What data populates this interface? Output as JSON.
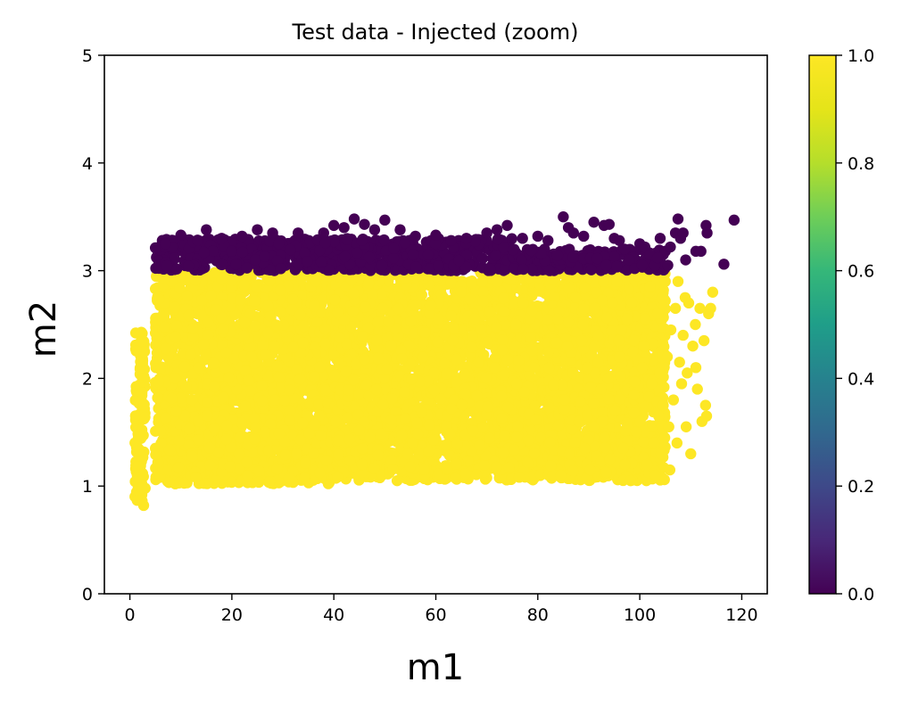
{
  "chart_data": {
    "type": "scatter",
    "title": "Test data - Injected (zoom)",
    "xlabel": "m1",
    "ylabel": "m2",
    "xlim": [
      -5,
      125
    ],
    "ylim": [
      0,
      5
    ],
    "xticks": [
      0,
      20,
      40,
      60,
      80,
      100,
      120
    ],
    "yticks": [
      0,
      1,
      2,
      3,
      4,
      5
    ],
    "grid": false,
    "legend": "none",
    "colormap": "viridis",
    "colorbar": {
      "range": [
        0.0,
        1.0
      ],
      "ticks": [
        "0.0",
        "0.2",
        "0.4",
        "0.6",
        "0.8",
        "1.0"
      ],
      "placement": "right"
    },
    "colors": {
      "label_1": "#fde725",
      "label_0": "#440154"
    },
    "series": [
      {
        "color_value": 1.0,
        "description_points": "dense filled region",
        "regions": [
          {
            "x_range": [
              1,
              3
            ],
            "y_range": [
              0.8,
              2.45
            ]
          },
          {
            "x_range": [
              5,
              40
            ],
            "y_range": [
              1.02,
              3.0
            ]
          },
          {
            "x_range": [
              40,
              82
            ],
            "y_range": [
              1.05,
              3.0
            ]
          },
          {
            "x_range": [
              82,
              105
            ],
            "y_range": [
              1.05,
              3.0
            ]
          }
        ],
        "points": [
          [
            84.5,
            1.1
          ],
          [
            86.2,
            1.3
          ],
          [
            88.1,
            1.6
          ],
          [
            89.7,
            2.1
          ],
          [
            90.3,
            1.15
          ],
          [
            91.8,
            2.4
          ],
          [
            92.4,
            1.9
          ],
          [
            93.1,
            1.45
          ],
          [
            94.6,
            2.7
          ],
          [
            95.2,
            1.7
          ],
          [
            96.0,
            2.2
          ],
          [
            96.8,
            1.35
          ],
          [
            97.5,
            2.55
          ],
          [
            98.2,
            1.05
          ],
          [
            98.9,
            1.85
          ],
          [
            99.6,
            2.95
          ],
          [
            100.1,
            1.6
          ],
          [
            100.8,
            2.3
          ],
          [
            101.4,
            1.2
          ],
          [
            101.9,
            2.8
          ],
          [
            102.3,
            1.95
          ],
          [
            102.8,
            1.4
          ],
          [
            103.1,
            1.1
          ],
          [
            103.5,
            2.6
          ],
          [
            103.9,
            2.05
          ],
          [
            104.2,
            1.3
          ],
          [
            104.6,
            1.75
          ],
          [
            105.0,
            2.9
          ],
          [
            105.4,
            2.2
          ],
          [
            105.7,
            1.55
          ],
          [
            106.1,
            2.45
          ],
          [
            106.6,
            1.8
          ],
          [
            107.0,
            2.65
          ],
          [
            107.3,
            1.4
          ],
          [
            107.8,
            2.15
          ],
          [
            108.2,
            1.95
          ],
          [
            108.5,
            2.4
          ],
          [
            109.1,
            1.55
          ],
          [
            109.6,
            2.7
          ],
          [
            110.0,
            1.3
          ],
          [
            110.4,
            2.3
          ],
          [
            110.9,
            2.5
          ],
          [
            111.3,
            1.9
          ],
          [
            111.8,
            2.65
          ],
          [
            112.2,
            1.6
          ],
          [
            112.6,
            2.35
          ],
          [
            113.1,
            1.65
          ],
          [
            113.5,
            2.6
          ],
          [
            113.9,
            2.65
          ],
          [
            114.3,
            2.8
          ],
          [
            95.5,
            2.9
          ],
          [
            97.1,
            1.2
          ],
          [
            99.3,
            1.5
          ],
          [
            100.5,
            2.1
          ],
          [
            102.0,
            2.85
          ],
          [
            103.7,
            1.65
          ],
          [
            105.9,
            1.15
          ],
          [
            108.9,
            2.75
          ],
          [
            111.0,
            2.1
          ],
          [
            112.9,
            1.75
          ],
          [
            86.9,
            2.05
          ],
          [
            88.6,
            2.35
          ],
          [
            90.9,
            1.55
          ],
          [
            92.9,
            2.9
          ],
          [
            94.1,
            1.25
          ],
          [
            84.0,
            2.55
          ],
          [
            85.3,
            1.8
          ],
          [
            87.4,
            2.75
          ],
          [
            89.2,
            1.35
          ],
          [
            91.2,
            2.65
          ],
          [
            93.8,
            2.0
          ],
          [
            96.4,
            2.45
          ],
          [
            98.6,
            2.25
          ],
          [
            101.1,
            2.55
          ],
          [
            104.9,
            1.45
          ],
          [
            107.5,
            2.9
          ],
          [
            109.3,
            2.05
          ]
        ]
      },
      {
        "color_value": 0.0,
        "description_points": "band above m2=3",
        "regions": [
          {
            "x_range": [
              5,
              75
            ],
            "y_range": [
              3.0,
              3.3
            ]
          },
          {
            "x_range": [
              75,
              105
            ],
            "y_range": [
              3.0,
              3.2
            ]
          }
        ],
        "points": [
          [
            7,
            3.25
          ],
          [
            10,
            3.33
          ],
          [
            15,
            3.38
          ],
          [
            18,
            3.3
          ],
          [
            22,
            3.32
          ],
          [
            25,
            3.38
          ],
          [
            28,
            3.35
          ],
          [
            33,
            3.35
          ],
          [
            38,
            3.35
          ],
          [
            40,
            3.42
          ],
          [
            42,
            3.4
          ],
          [
            44,
            3.48
          ],
          [
            46,
            3.43
          ],
          [
            48,
            3.38
          ],
          [
            50,
            3.47
          ],
          [
            53,
            3.38
          ],
          [
            56,
            3.32
          ],
          [
            60,
            3.33
          ],
          [
            63,
            3.28
          ],
          [
            66,
            3.3
          ],
          [
            70,
            3.35
          ],
          [
            72,
            3.38
          ],
          [
            74,
            3.42
          ],
          [
            77,
            3.3
          ],
          [
            80,
            3.32
          ],
          [
            82,
            3.28
          ],
          [
            85,
            3.5
          ],
          [
            86,
            3.4
          ],
          [
            87,
            3.35
          ],
          [
            89,
            3.32
          ],
          [
            91,
            3.45
          ],
          [
            93,
            3.42
          ],
          [
            94,
            3.43
          ],
          [
            95,
            3.3
          ],
          [
            96,
            3.28
          ],
          [
            97,
            3.2
          ],
          [
            98,
            3.1
          ],
          [
            100,
            3.25
          ],
          [
            101,
            3.22
          ],
          [
            102,
            3.15
          ],
          [
            103,
            3.05
          ],
          [
            104,
            3.3
          ],
          [
            105,
            3.18
          ],
          [
            106,
            3.22
          ],
          [
            107,
            3.35
          ],
          [
            107.5,
            3.48
          ],
          [
            108,
            3.3
          ],
          [
            108.5,
            3.35
          ],
          [
            109,
            3.1
          ],
          [
            111,
            3.18
          ],
          [
            112,
            3.18
          ],
          [
            113,
            3.42
          ],
          [
            113.2,
            3.35
          ],
          [
            116.5,
            3.06
          ],
          [
            118.5,
            3.47
          ],
          [
            99,
            3.02
          ],
          [
            100.5,
            3.05
          ],
          [
            103.5,
            3.12
          ],
          [
            105.5,
            3.05
          ]
        ]
      }
    ]
  }
}
